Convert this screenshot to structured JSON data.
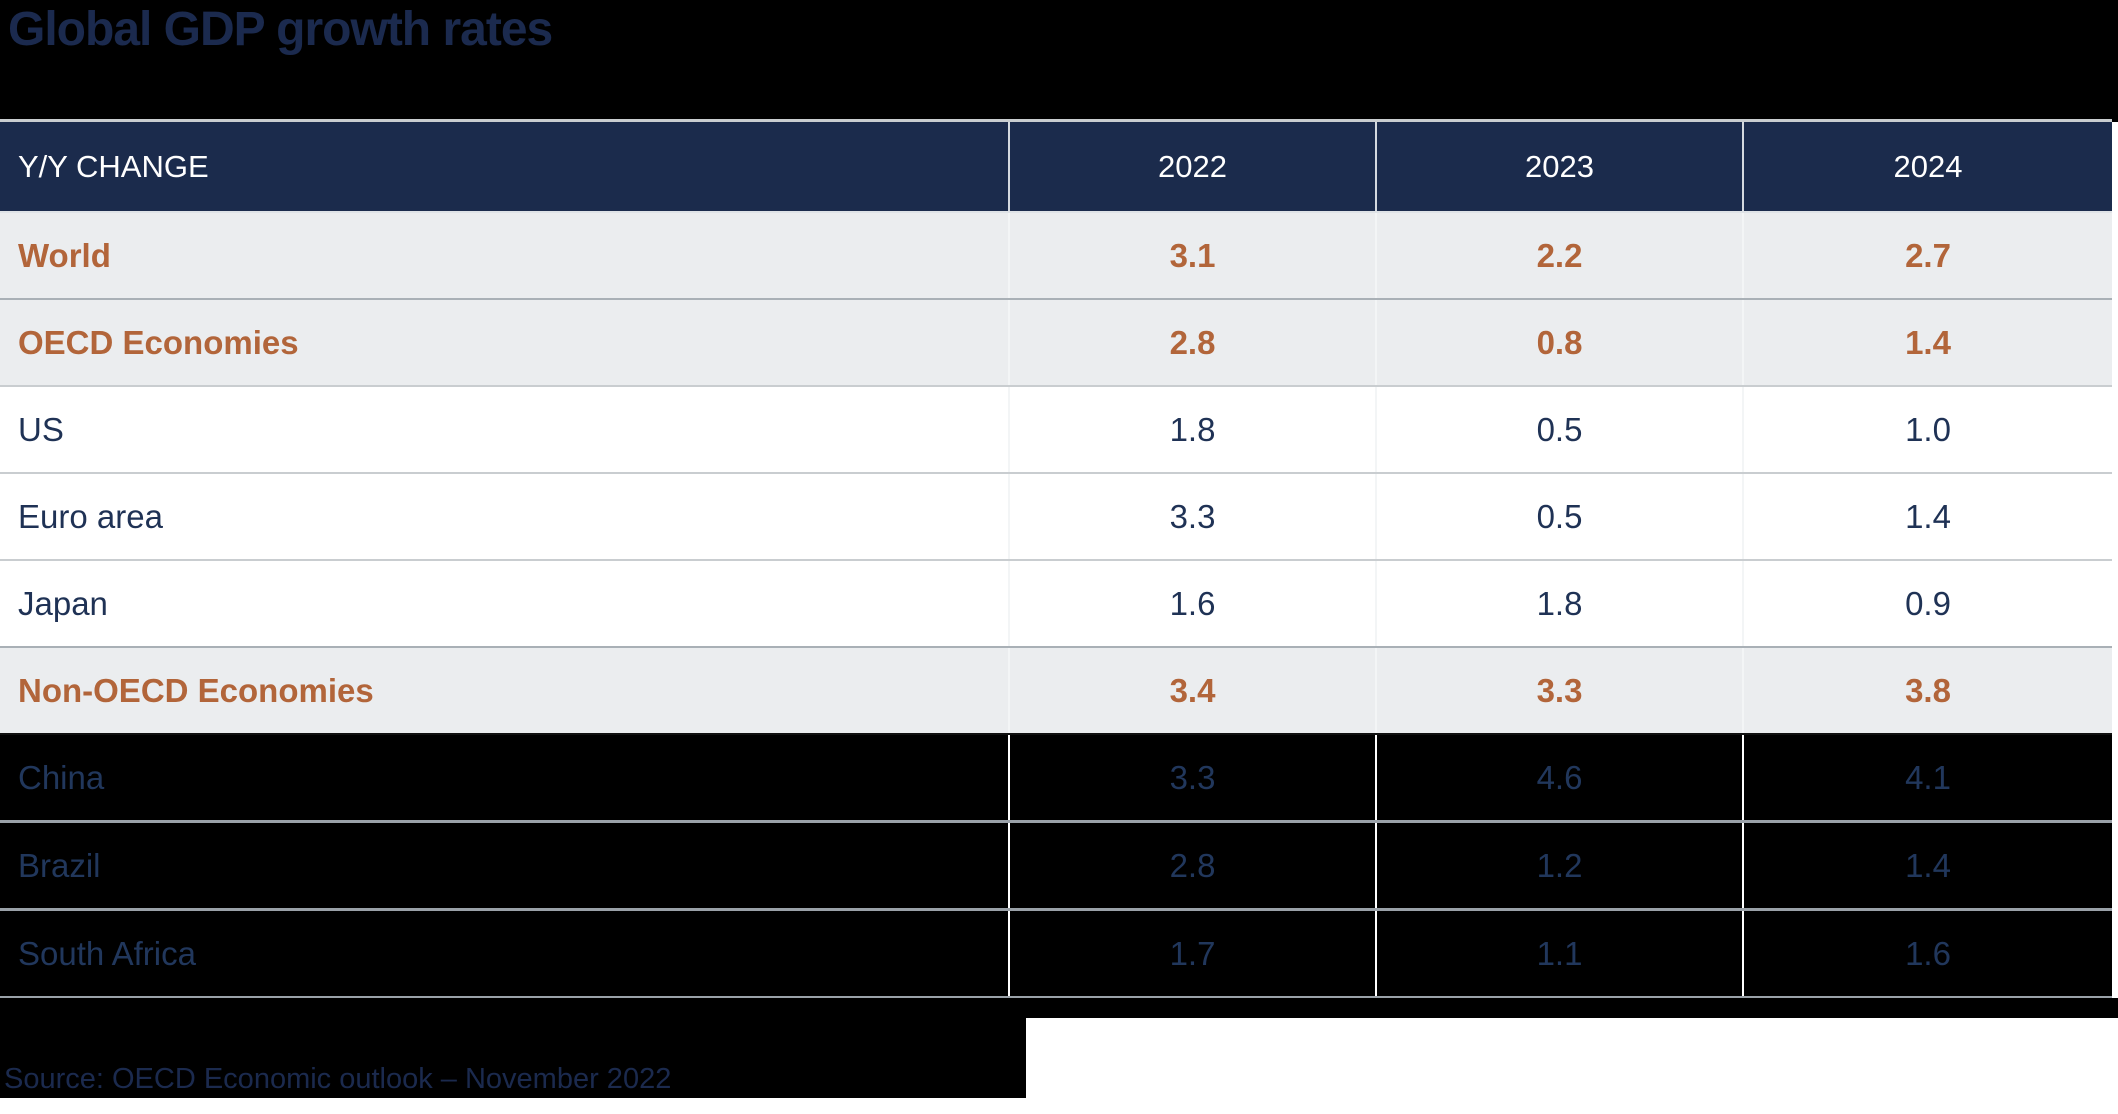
{
  "title": "Global GDP growth rates",
  "source_note": "Source: OECD Economic outlook – November 2022",
  "colors": {
    "black": "#000000",
    "navy-bg": "#1b2b4c",
    "dark-navy": "#1b2a4e",
    "navy-text": "#1f3255",
    "dark-row-text": "#21375c",
    "orange": "#b2653a",
    "gray-row": "#ebedef",
    "sep-light": "#c9cdd0",
    "sep-mid": "#a9b0b6",
    "sep-dark-row": "#9aa1a8",
    "cell-line": "#f3f5f6",
    "header-line": "#d4d9df"
  },
  "chart_data": {
    "type": "table",
    "title": "Global GDP growth rates",
    "columns": [
      "Y/Y CHANGE",
      "2022",
      "2023",
      "2024"
    ],
    "rows": [
      {
        "label": "World",
        "values": [
          "3.1",
          "2.2",
          "2.7"
        ],
        "style": "aggregate"
      },
      {
        "label": "OECD Economies",
        "values": [
          "2.8",
          "0.8",
          "1.4"
        ],
        "style": "aggregate"
      },
      {
        "label": "US",
        "values": [
          "1.8",
          "0.5",
          "1.0"
        ],
        "style": "member"
      },
      {
        "label": "Euro area",
        "values": [
          "3.3",
          "0.5",
          "1.4"
        ],
        "style": "member"
      },
      {
        "label": "Japan",
        "values": [
          "1.6",
          "1.8",
          "0.9"
        ],
        "style": "member"
      },
      {
        "label": "Non-OECD Economies",
        "values": [
          "3.4",
          "3.3",
          "3.8"
        ],
        "style": "aggregate"
      },
      {
        "label": "China",
        "values": [
          "3.3",
          "4.6",
          "4.1"
        ],
        "style": "dark"
      },
      {
        "label": "Brazil",
        "values": [
          "2.8",
          "1.2",
          "1.4"
        ],
        "style": "dark"
      },
      {
        "label": "South Africa",
        "values": [
          "1.7",
          "1.1",
          "1.6"
        ],
        "style": "dark"
      }
    ],
    "layout": {
      "grid": "light horizontal and vertical separators",
      "legend": "none"
    }
  }
}
